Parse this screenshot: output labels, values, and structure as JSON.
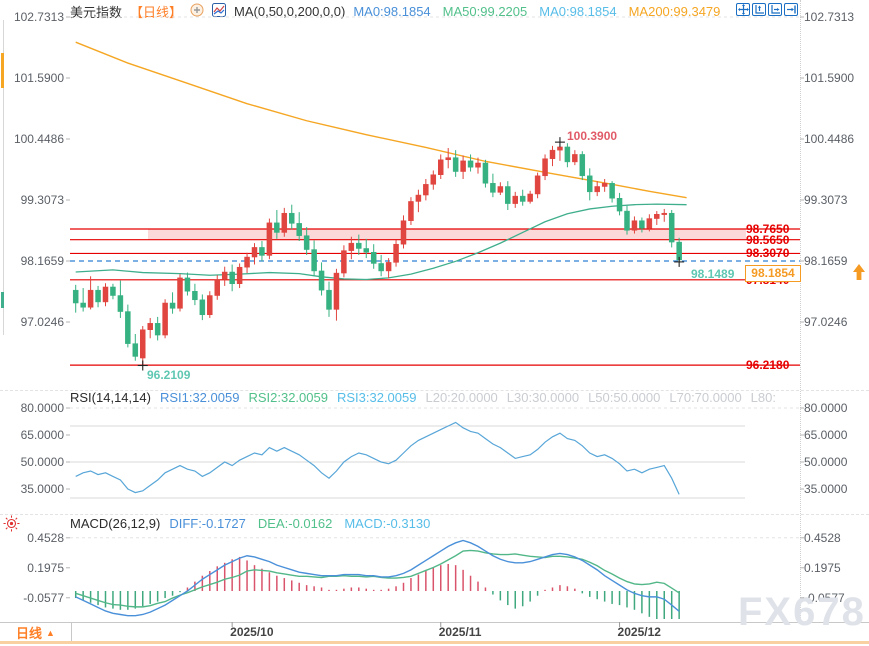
{
  "header": {
    "title": "美元指数",
    "timeframe": "【日线】",
    "ma_group_label": "MA(0,50,0,200,0,0)",
    "ma_items": [
      {
        "label": "MA0:98.1854",
        "color": "#4a90d9"
      },
      {
        "label": "MA50:99.2205",
        "color": "#52c08b"
      },
      {
        "label": "MA0:98.1854",
        "color": "#57bde8"
      },
      {
        "label": "MA200:99.3479",
        "color": "#f5a623"
      }
    ],
    "toolbar_icons": [
      "move-crosshair-icon",
      "axis-scale-up-icon",
      "axis-scale-right-icon",
      "pan-to-latest-icon"
    ]
  },
  "rsi_header": {
    "label": "RSI(14,14,14)",
    "items": [
      {
        "label": "RSI1:32.0059",
        "color": "#4a90d9"
      },
      {
        "label": "RSI2:32.0059",
        "color": "#52c08b"
      },
      {
        "label": "RSI3:32.0059",
        "color": "#57bde8"
      },
      {
        "label": "L20:20.0000",
        "color": "#c9ccd1"
      },
      {
        "label": "L30:30.0000",
        "color": "#c9ccd1"
      },
      {
        "label": "L50:50.0000",
        "color": "#c9ccd1"
      },
      {
        "label": "L70:70.0000",
        "color": "#c9ccd1"
      },
      {
        "label": "L80:",
        "color": "#c9ccd1"
      }
    ]
  },
  "macd_header": {
    "label": "MACD(26,12,9)",
    "items": [
      {
        "label": "DIFF:-0.1727",
        "color": "#4a90d9"
      },
      {
        "label": "DEA:-0.0162",
        "color": "#52c08b"
      },
      {
        "label": "MACD:-0.3130",
        "color": "#57bde8"
      }
    ]
  },
  "price_badge": {
    "value": "98.1854",
    "color": "#f59a23"
  },
  "annotations": {
    "peak": {
      "text": "100.3900",
      "color": "#e05a68"
    },
    "last_low": {
      "text": "98.1489",
      "color": "#5fc7b2"
    },
    "bottom_low": {
      "text": "96.2109",
      "color": "#5fc7b2"
    }
  },
  "level_labels": [
    "98.7650",
    "98.5650",
    "98.3070",
    "97.8140",
    "96.2180"
  ],
  "bottom_bar": {
    "timeframe": "日线",
    "arrow": "▲",
    "dates": [
      "2025/10",
      "2025/11",
      "2025/12"
    ]
  },
  "watermark": "FX678",
  "chart_data": {
    "type": "candlestick",
    "title": "美元指数 日线 (US Dollar Index, Daily)",
    "price_ticks": [
      102.7313,
      101.59,
      100.4486,
      99.3073,
      98.1659,
      97.0246
    ],
    "levels": [
      98.765,
      98.565,
      98.307,
      97.814,
      96.218
    ],
    "band": {
      "from": 98.565,
      "to": 98.765
    },
    "prev_close": 98.1659,
    "current_price": 98.1854,
    "date_tick_indices": [
      21,
      49,
      73
    ],
    "candles": [
      [
        97.62,
        97.72,
        97.2,
        97.38
      ],
      [
        97.38,
        97.66,
        97.22,
        97.3
      ],
      [
        97.3,
        97.88,
        97.26,
        97.62
      ],
      [
        97.62,
        97.7,
        97.3,
        97.4
      ],
      [
        97.4,
        97.75,
        97.32,
        97.68
      ],
      [
        97.68,
        97.74,
        97.45,
        97.52
      ],
      [
        97.52,
        97.8,
        97.1,
        97.22
      ],
      [
        97.22,
        97.35,
        96.55,
        96.62
      ],
      [
        96.62,
        96.8,
        96.3,
        96.38
      ],
      [
        96.35,
        96.95,
        96.211,
        96.88
      ],
      [
        96.88,
        97.1,
        96.72,
        97.0
      ],
      [
        97.0,
        97.12,
        96.68,
        96.78
      ],
      [
        96.78,
        97.45,
        96.72,
        97.38
      ],
      [
        97.38,
        97.58,
        97.18,
        97.28
      ],
      [
        97.28,
        97.92,
        97.22,
        97.85
      ],
      [
        97.85,
        97.95,
        97.52,
        97.6
      ],
      [
        97.6,
        97.74,
        97.34,
        97.44
      ],
      [
        97.44,
        97.54,
        97.06,
        97.16
      ],
      [
        97.16,
        97.6,
        97.1,
        97.52
      ],
      [
        97.52,
        97.9,
        97.44,
        97.82
      ],
      [
        97.82,
        98.06,
        97.7,
        97.96
      ],
      [
        97.96,
        98.1,
        97.6,
        97.74
      ],
      [
        97.74,
        98.12,
        97.66,
        98.05
      ],
      [
        98.05,
        98.32,
        97.94,
        98.24
      ],
      [
        98.24,
        98.5,
        98.1,
        98.42
      ],
      [
        98.42,
        98.54,
        98.16,
        98.27
      ],
      [
        98.27,
        98.96,
        98.2,
        98.88
      ],
      [
        98.88,
        99.12,
        98.58,
        98.7
      ],
      [
        98.7,
        99.16,
        98.62,
        99.06
      ],
      [
        99.06,
        99.22,
        98.76,
        98.87
      ],
      [
        98.87,
        99.08,
        98.54,
        98.64
      ],
      [
        98.64,
        98.8,
        98.28,
        98.38
      ],
      [
        98.38,
        98.55,
        97.88,
        97.98
      ],
      [
        97.98,
        98.14,
        97.52,
        97.62
      ],
      [
        97.62,
        97.78,
        97.12,
        97.26
      ],
      [
        97.26,
        98.02,
        97.05,
        97.94
      ],
      [
        97.94,
        98.46,
        97.86,
        98.36
      ],
      [
        98.36,
        98.62,
        98.2,
        98.5
      ],
      [
        98.5,
        98.66,
        98.28,
        98.4
      ],
      [
        98.4,
        98.58,
        98.22,
        98.33
      ],
      [
        98.33,
        98.48,
        98.02,
        98.12
      ],
      [
        98.12,
        98.28,
        97.88,
        97.98
      ],
      [
        97.98,
        98.22,
        97.84,
        98.14
      ],
      [
        98.14,
        98.56,
        98.06,
        98.48
      ],
      [
        98.48,
        99.02,
        98.4,
        98.92
      ],
      [
        98.92,
        99.36,
        98.84,
        99.28
      ],
      [
        99.28,
        99.5,
        99.08,
        99.4
      ],
      [
        99.4,
        99.7,
        99.3,
        99.6
      ],
      [
        99.6,
        99.86,
        99.5,
        99.78
      ],
      [
        99.78,
        100.16,
        99.7,
        100.06
      ],
      [
        100.06,
        100.28,
        99.9,
        100.1
      ],
      [
        100.1,
        100.24,
        99.74,
        99.84
      ],
      [
        99.84,
        100.14,
        99.7,
        100.04
      ],
      [
        100.04,
        100.16,
        99.84,
        99.92
      ],
      [
        99.92,
        100.1,
        99.8,
        100.0
      ],
      [
        100.0,
        100.06,
        99.54,
        99.62
      ],
      [
        99.62,
        99.8,
        99.36,
        99.45
      ],
      [
        99.45,
        99.64,
        99.4,
        99.56
      ],
      [
        99.56,
        99.66,
        99.12,
        99.24
      ],
      [
        99.24,
        99.46,
        99.16,
        99.38
      ],
      [
        99.38,
        99.5,
        99.2,
        99.28
      ],
      [
        99.28,
        99.48,
        99.24,
        99.42
      ],
      [
        99.42,
        99.82,
        99.34,
        99.76
      ],
      [
        99.76,
        100.16,
        99.68,
        100.08
      ],
      [
        100.08,
        100.32,
        99.94,
        100.24
      ],
      [
        100.24,
        100.39,
        100.04,
        100.3
      ],
      [
        100.3,
        100.37,
        99.92,
        100.02
      ],
      [
        100.02,
        100.24,
        99.96,
        100.16
      ],
      [
        100.16,
        100.22,
        99.68,
        99.76
      ],
      [
        99.76,
        99.9,
        99.3,
        99.46
      ],
      [
        99.46,
        99.66,
        99.38,
        99.56
      ],
      [
        99.56,
        99.7,
        99.46,
        99.62
      ],
      [
        99.62,
        99.66,
        99.26,
        99.34
      ],
      [
        99.34,
        99.44,
        99.02,
        99.1
      ],
      [
        99.1,
        99.2,
        98.66,
        98.74
      ],
      [
        98.74,
        99.0,
        98.68,
        98.92
      ],
      [
        98.92,
        98.98,
        98.7,
        98.78
      ],
      [
        98.78,
        99.04,
        98.72,
        98.96
      ],
      [
        98.96,
        99.1,
        98.84,
        99.04
      ],
      [
        99.04,
        99.14,
        98.9,
        99.06
      ],
      [
        99.06,
        99.12,
        98.42,
        98.52
      ],
      [
        98.52,
        98.6,
        98.1489,
        98.1854
      ]
    ],
    "ma200": [
      [
        0,
        102.26
      ],
      [
        7,
        101.87
      ],
      [
        15,
        101.49
      ],
      [
        23,
        101.11
      ],
      [
        31,
        100.79
      ],
      [
        39,
        100.53
      ],
      [
        47,
        100.29
      ],
      [
        55,
        100.03
      ],
      [
        64,
        99.8
      ],
      [
        72,
        99.6
      ],
      [
        77,
        99.47
      ],
      [
        82,
        99.35
      ]
    ],
    "ma50": [
      [
        0,
        97.96
      ],
      [
        5,
        98.0
      ],
      [
        9,
        97.95
      ],
      [
        14,
        97.93
      ],
      [
        18,
        97.9
      ],
      [
        22,
        97.92
      ],
      [
        26,
        97.95
      ],
      [
        30,
        97.93
      ],
      [
        33,
        97.87
      ],
      [
        36,
        97.83
      ],
      [
        39,
        97.82
      ],
      [
        42,
        97.85
      ],
      [
        45,
        97.92
      ],
      [
        48,
        98.03
      ],
      [
        51,
        98.16
      ],
      [
        54,
        98.32
      ],
      [
        57,
        98.5
      ],
      [
        60,
        98.7
      ],
      [
        63,
        98.9
      ],
      [
        66,
        99.05
      ],
      [
        69,
        99.14
      ],
      [
        72,
        99.19
      ],
      [
        75,
        99.22
      ],
      [
        78,
        99.23
      ],
      [
        82,
        99.22
      ]
    ],
    "markers": [
      {
        "index": 65,
        "price": 100.39
      },
      {
        "index": 81,
        "price": 98.1489
      },
      {
        "index": 9,
        "price": 96.2109
      }
    ],
    "rsi": {
      "ticks": [
        80,
        65,
        50,
        35
      ],
      "levels": [
        70,
        50,
        30
      ],
      "current": 32.0059,
      "values": [
        42,
        44,
        45,
        43,
        44,
        42,
        40,
        35,
        33,
        34,
        37,
        40,
        44,
        46,
        48,
        46,
        45,
        42,
        44,
        47,
        50,
        48,
        51,
        53,
        55,
        54,
        58,
        56,
        58,
        56,
        54,
        51,
        48,
        44,
        41,
        45,
        50,
        53,
        55,
        54,
        52,
        50,
        49,
        51,
        55,
        59,
        62,
        64,
        66,
        68,
        70,
        72,
        69,
        67,
        66,
        63,
        60,
        58,
        55,
        52,
        53,
        54,
        57,
        61,
        64,
        66,
        63,
        62,
        59,
        55,
        53,
        54,
        52,
        49,
        45,
        46,
        44,
        46,
        47,
        48,
        41,
        32
      ]
    },
    "macd": {
      "ticks": [
        0.4528,
        0.1975,
        -0.0577
      ],
      "diff_value": -0.1727,
      "dea_value": -0.0162,
      "macd_value": -0.313,
      "diff": [
        -0.05,
        -0.08,
        -0.11,
        -0.14,
        -0.17,
        -0.19,
        -0.2,
        -0.21,
        -0.21,
        -0.2,
        -0.18,
        -0.15,
        -0.12,
        -0.08,
        -0.04,
        0.0,
        0.05,
        0.1,
        0.14,
        0.18,
        0.22,
        0.25,
        0.28,
        0.3,
        0.29,
        0.27,
        0.25,
        0.22,
        0.2,
        0.18,
        0.16,
        0.15,
        0.14,
        0.13,
        0.13,
        0.13,
        0.14,
        0.14,
        0.14,
        0.13,
        0.13,
        0.12,
        0.12,
        0.13,
        0.15,
        0.18,
        0.22,
        0.26,
        0.3,
        0.34,
        0.38,
        0.41,
        0.43,
        0.41,
        0.38,
        0.34,
        0.3,
        0.27,
        0.25,
        0.24,
        0.24,
        0.25,
        0.27,
        0.29,
        0.31,
        0.32,
        0.31,
        0.29,
        0.26,
        0.22,
        0.18,
        0.13,
        0.09,
        0.05,
        0.01,
        -0.02,
        -0.04,
        -0.05,
        -0.05,
        -0.07,
        -0.12,
        -0.1727
      ],
      "hist": [
        -0.06,
        -0.08,
        -0.1,
        -0.12,
        -0.14,
        -0.15,
        -0.16,
        -0.16,
        -0.15,
        -0.13,
        -0.11,
        -0.09,
        -0.06,
        -0.04,
        -0.01,
        0.03,
        0.08,
        0.13,
        0.17,
        0.21,
        0.24,
        0.27,
        0.29,
        0.26,
        0.22,
        0.19,
        0.16,
        0.13,
        0.11,
        0.09,
        0.07,
        0.05,
        0.04,
        0.03,
        0.01,
        0.01,
        0.02,
        0.03,
        0.03,
        0.02,
        0.01,
        0.01,
        0.02,
        0.04,
        0.07,
        0.11,
        0.14,
        0.17,
        0.2,
        0.22,
        0.23,
        0.22,
        0.18,
        0.13,
        0.08,
        0.03,
        -0.03,
        -0.08,
        -0.12,
        -0.15,
        -0.13,
        -0.09,
        -0.04,
        0.01,
        0.03,
        0.05,
        0.04,
        0.02,
        -0.02,
        -0.05,
        -0.07,
        -0.09,
        -0.11,
        -0.12,
        -0.14,
        -0.16,
        -0.19,
        -0.22,
        -0.25,
        -0.27,
        -0.29,
        -0.313
      ]
    },
    "colors": {
      "up": "#e0453f",
      "down": "#36b181",
      "ma200": "#f5a623",
      "ma50": "#3fae8c",
      "level_line": "#e60000",
      "band_fill": "#fbd9d9",
      "prev_close_line": "#2f80d4",
      "rsi_line": "#58a6d8",
      "diff_line": "#4a90d9",
      "dea_line": "#52b788",
      "hist_up": "#d9536a",
      "hist_down": "#3fa87e",
      "grid": "#e3e3e3"
    }
  }
}
